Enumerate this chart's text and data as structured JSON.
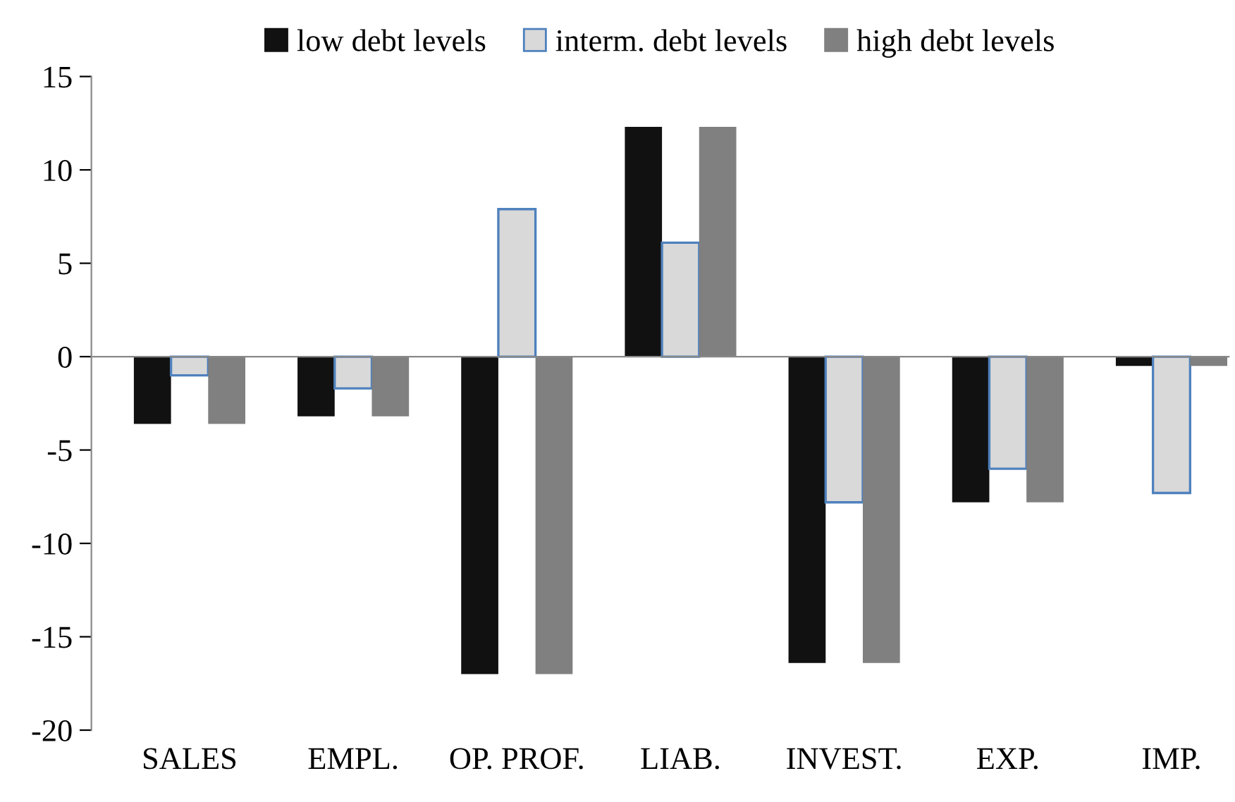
{
  "chart_data": {
    "type": "bar",
    "categories": [
      "SALES",
      "EMPL.",
      "OP. PROF.",
      "LIAB.",
      "INVEST.",
      "EXP.",
      "IMP."
    ],
    "series": [
      {
        "name": "low debt levels",
        "color": "#111111",
        "values": [
          -3.6,
          -3.2,
          -17.0,
          12.3,
          -16.4,
          -7.8,
          -0.5
        ]
      },
      {
        "name": "interm. debt levels",
        "color": "#d9d9d9",
        "values": [
          -1.0,
          -1.7,
          7.9,
          6.1,
          -7.8,
          -6.0,
          -7.3
        ]
      },
      {
        "name": "high debt levels",
        "color": "#808080",
        "values": [
          -3.6,
          -3.2,
          -17.0,
          12.3,
          -16.4,
          -7.8,
          -0.5
        ]
      }
    ],
    "ylim": [
      -20,
      15
    ],
    "yticks": [
      -20,
      -15,
      -10,
      -5,
      0,
      5,
      10,
      15
    ],
    "legend": "top"
  }
}
